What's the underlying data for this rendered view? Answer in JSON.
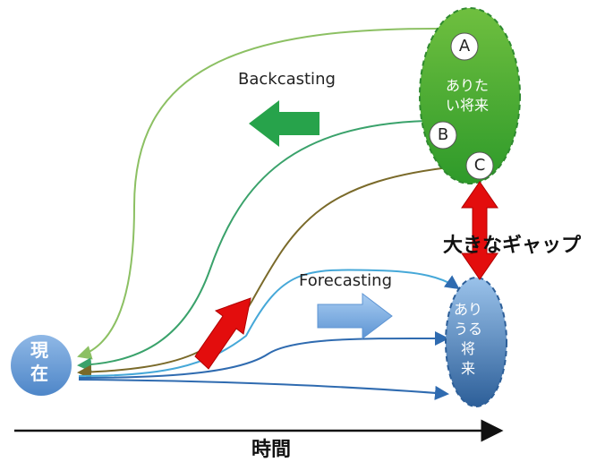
{
  "labels": {
    "backcasting": "Backcasting",
    "forecasting": "Forecasting",
    "gap": "大きなギャップ",
    "time_axis": "時間"
  },
  "nodes": {
    "present": {
      "line1": "現",
      "line2": "在"
    },
    "desired_future": {
      "line1": "ありた",
      "line2": "い将来"
    },
    "possible_future": {
      "line1": "あり",
      "line2": "うる",
      "line3": "将",
      "line4": "来"
    }
  },
  "points": {
    "a": "A",
    "b": "B",
    "c": "C"
  },
  "colors": {
    "green_gradient_top": "#6fbf3f",
    "green_gradient_bottom": "#2e9a2a",
    "blue_gradient_top": "#9ac2ea",
    "blue_gradient_bottom": "#2d5f99",
    "present_circle": "#6e9fd8",
    "backcasting_arrow": "#27a34b",
    "forecasting_arrow": "#7bb0e6",
    "gap_arrow": "#e30d0d"
  }
}
